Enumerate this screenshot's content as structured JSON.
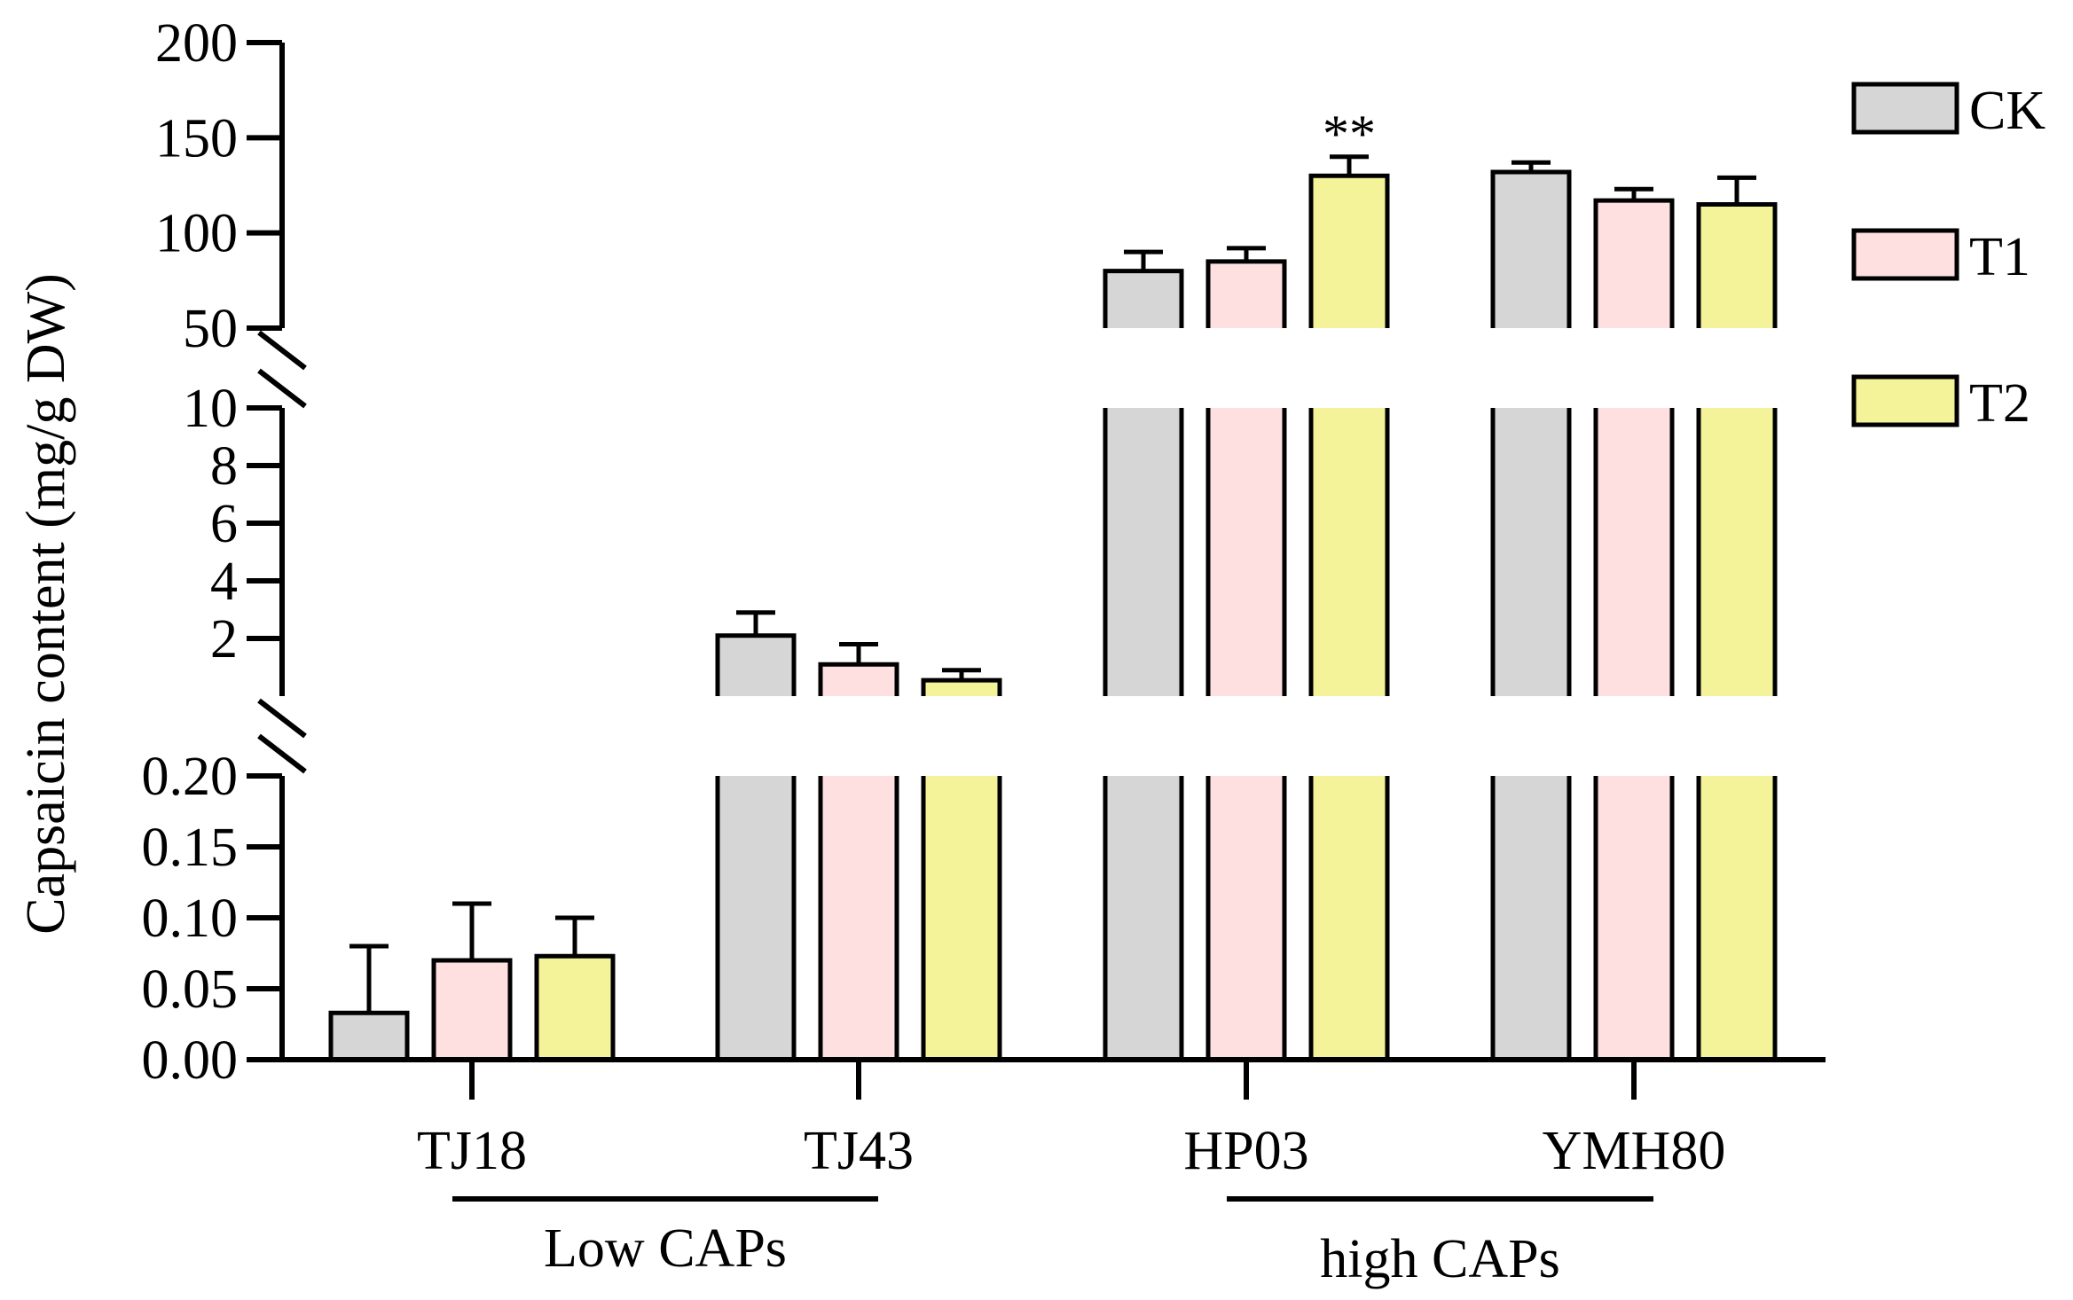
{
  "chart_data": {
    "type": "bar",
    "ylabel": "Capsaicin content (mg/g DW)",
    "categories": [
      "TJ18",
      "TJ43",
      "HP03",
      "YMH80"
    ],
    "groups": [
      {
        "label": "Low CAPs",
        "categories": [
          "TJ18",
          "TJ43"
        ]
      },
      {
        "label": "high CAPs",
        "categories": [
          "HP03",
          "YMH80"
        ]
      }
    ],
    "series": [
      {
        "name": "CK",
        "color": "#d6d6d6",
        "values": [
          0.033,
          2.1,
          80,
          132
        ],
        "errors": [
          0.047,
          0.8,
          10,
          5
        ]
      },
      {
        "name": "T1",
        "color": "#ffe0e0",
        "values": [
          0.07,
          1.1,
          85,
          117
        ],
        "errors": [
          0.04,
          0.7,
          7,
          6
        ]
      },
      {
        "name": "T2",
        "color": "#f5f39a",
        "values": [
          0.073,
          0.55,
          130,
          115
        ],
        "errors": [
          0.027,
          0.35,
          10,
          14
        ]
      }
    ],
    "annotations": [
      {
        "category": "HP03",
        "series": "T2",
        "text": "**"
      }
    ],
    "axis_segments": [
      {
        "range": [
          0,
          0.2
        ],
        "ticks": [
          "0.00",
          "0.05",
          "0.10",
          "0.15",
          "0.20"
        ],
        "tick_values": [
          0,
          0.05,
          0.1,
          0.15,
          0.2
        ]
      },
      {
        "range": [
          0,
          10
        ],
        "ticks": [
          "2",
          "4",
          "6",
          "8",
          "10"
        ],
        "tick_values": [
          2,
          4,
          6,
          8,
          10
        ]
      },
      {
        "range": [
          50,
          200
        ],
        "ticks": [
          "50",
          "100",
          "150",
          "200"
        ],
        "tick_values": [
          50,
          100,
          150,
          200
        ]
      }
    ],
    "legend_position": "top-right",
    "grid": false
  }
}
